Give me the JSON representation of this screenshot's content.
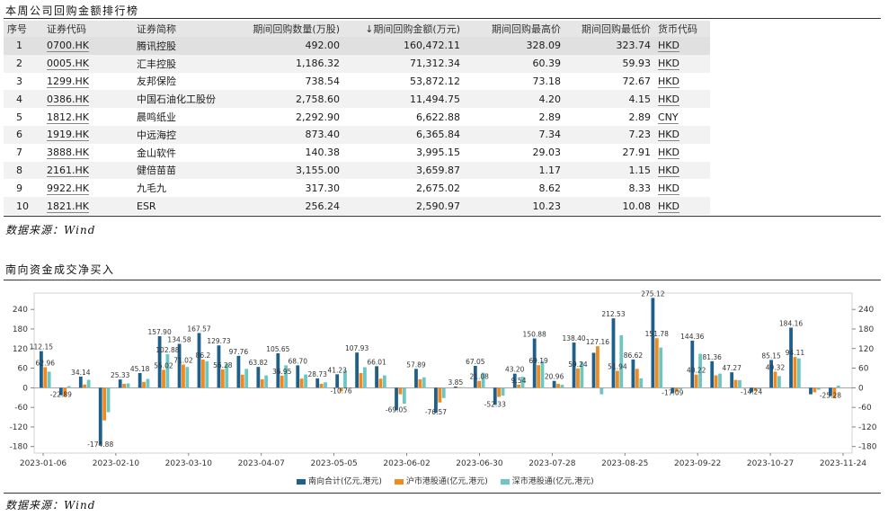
{
  "table_section": {
    "title": "本周公司回购金额排行榜",
    "source": "数据来源：Wind",
    "columns": [
      "序号",
      "证券代码",
      "证券简称",
      "期间回购数量(万股)",
      "↓期间回购金额(万元)",
      "期间回购最高价",
      "期间回购最低价",
      "货币代码"
    ],
    "rows": [
      [
        "1",
        "0700.HK",
        "腾讯控股",
        "492.00",
        "160,472.11",
        "328.09",
        "323.74",
        "HKD"
      ],
      [
        "2",
        "0005.HK",
        "汇丰控股",
        "1,186.32",
        "71,312.34",
        "60.39",
        "59.93",
        "HKD"
      ],
      [
        "3",
        "1299.HK",
        "友邦保险",
        "738.54",
        "53,872.12",
        "73.18",
        "72.67",
        "HKD"
      ],
      [
        "4",
        "0386.HK",
        "中国石油化工股份",
        "2,758.60",
        "11,494.75",
        "4.20",
        "4.15",
        "HKD"
      ],
      [
        "5",
        "1812.HK",
        "晨鸣纸业",
        "2,292.90",
        "6,622.88",
        "2.89",
        "2.89",
        "CNY"
      ],
      [
        "6",
        "1919.HK",
        "中远海控",
        "873.40",
        "6,365.84",
        "7.34",
        "7.23",
        "HKD"
      ],
      [
        "7",
        "3888.HK",
        "金山软件",
        "140.38",
        "3,995.15",
        "29.03",
        "27.91",
        "HKD"
      ],
      [
        "8",
        "2161.HK",
        "健倍苗苗",
        "3,155.00",
        "3,659.87",
        "1.17",
        "1.15",
        "HKD"
      ],
      [
        "9",
        "9922.HK",
        "九毛九",
        "317.30",
        "2,675.02",
        "8.62",
        "8.33",
        "HKD"
      ],
      [
        "10",
        "1821.HK",
        "ESR",
        "256.24",
        "2,590.97",
        "10.23",
        "10.08",
        "HKD"
      ]
    ]
  },
  "chart_section": {
    "title": "南向资金成交净买入",
    "source": "数据来源：Wind"
  },
  "chart_data": {
    "type": "bar",
    "y_ticks": [
      240,
      180,
      120,
      60,
      0,
      -60,
      -120,
      -180
    ],
    "ylim": [
      -200,
      290
    ],
    "x_tick_labels": [
      "2023-01-06",
      "2023-02-10",
      "2023-03-10",
      "2023-04-07",
      "2023-05-05",
      "2023-06-02",
      "2023-06-30",
      "2023-07-28",
      "2023-08-25",
      "2023-09-22",
      "2023-10-27",
      "2023-11-24"
    ],
    "colors": {
      "south": "#1f5f8b",
      "sh": "#f08a1c",
      "sz": "#6cc7c4",
      "label": "#333333"
    },
    "series": [
      {
        "name": "南向合计(亿元,港元)",
        "values": [
          112.15,
          -22.89,
          34.14,
          -174.88,
          25.33,
          45.18,
          157.9,
          134.58,
          167.57,
          129.73,
          97.76,
          63.82,
          105.65,
          68.7,
          28.73,
          41.23,
          107.93,
          66.01,
          -69.05,
          57.89,
          -76.57,
          3.85,
          67.05,
          -52.33,
          43.2,
          150.88,
          20.96,
          138.4,
          107.16,
          212.53,
          86.62,
          275.12,
          -17.09,
          144.36,
          81.36,
          47.27,
          -14.24,
          85.15,
          184.16,
          -20.0,
          -25.28
        ]
      },
      {
        "name": "沪市港股通(亿元,港元)",
        "values": [
          62.96,
          -28.0,
          10.0,
          -100.0,
          12.0,
          18.0,
          55.02,
          71.02,
          86.2,
          56.28,
          40.0,
          26.0,
          36.95,
          28.0,
          12.0,
          -10.76,
          45.0,
          28.0,
          -20.0,
          26.0,
          -45.0,
          2.0,
          21.08,
          -28.0,
          9.54,
          69.19,
          12.0,
          59.24,
          127.16,
          51.94,
          58.0,
          151.78,
          -12.0,
          40.22,
          38.0,
          24.0,
          -10.0,
          49.32,
          94.11,
          -14.0,
          -32.0
        ]
      },
      {
        "name": "深市港股通(亿元,港元)",
        "values": [
          49.19,
          5.0,
          24.14,
          -74.88,
          13.33,
          27.18,
          102.88,
          63.56,
          81.37,
          73.45,
          57.76,
          37.82,
          68.7,
          40.7,
          16.73,
          52.0,
          62.93,
          38.01,
          -49.05,
          31.89,
          -31.57,
          1.85,
          45.97,
          -24.33,
          33.66,
          81.69,
          8.96,
          79.16,
          -20.0,
          160.59,
          28.62,
          123.34,
          -5.09,
          104.14,
          43.36,
          23.27,
          -4.24,
          35.83,
          90.05,
          -6.0,
          6.72
        ]
      }
    ],
    "data_labels": [
      {
        "i": 0,
        "s": 0,
        "t": "112.15"
      },
      {
        "i": 0,
        "s": 1,
        "t": "62.96"
      },
      {
        "i": 1,
        "s": 0,
        "t": "-22.89"
      },
      {
        "i": 2,
        "s": 0,
        "t": "34.14"
      },
      {
        "i": 3,
        "s": 0,
        "t": "-174.88"
      },
      {
        "i": 4,
        "s": 0,
        "t": "25.33"
      },
      {
        "i": 5,
        "s": 0,
        "t": "45.18"
      },
      {
        "i": 6,
        "s": 0,
        "t": "157.90"
      },
      {
        "i": 6,
        "s": 2,
        "t": "102.88"
      },
      {
        "i": 6,
        "s": 1,
        "t": "55.02"
      },
      {
        "i": 7,
        "s": 0,
        "t": "134.58"
      },
      {
        "i": 7,
        "s": 1,
        "t": "71.02"
      },
      {
        "i": 8,
        "s": 0,
        "t": "167.57"
      },
      {
        "i": 8,
        "s": 1,
        "t": "86.2"
      },
      {
        "i": 9,
        "s": 0,
        "t": "129.73"
      },
      {
        "i": 9,
        "s": 1,
        "t": "56.28"
      },
      {
        "i": 10,
        "s": 0,
        "t": "97.76"
      },
      {
        "i": 11,
        "s": 0,
        "t": "63.82"
      },
      {
        "i": 12,
        "s": 0,
        "t": "105.65"
      },
      {
        "i": 12,
        "s": 1,
        "t": "36.95"
      },
      {
        "i": 13,
        "s": 0,
        "t": "68.70"
      },
      {
        "i": 14,
        "s": 0,
        "t": "28.73"
      },
      {
        "i": 15,
        "s": 0,
        "t": "41.23"
      },
      {
        "i": 15,
        "s": 1,
        "t": "-10.76"
      },
      {
        "i": 16,
        "s": 0,
        "t": "107.93"
      },
      {
        "i": 17,
        "s": 0,
        "t": "66.01"
      },
      {
        "i": 18,
        "s": 0,
        "t": "-69.05"
      },
      {
        "i": 19,
        "s": 0,
        "t": "57.89"
      },
      {
        "i": 20,
        "s": 0,
        "t": "-76.57"
      },
      {
        "i": 21,
        "s": 0,
        "t": "3.85"
      },
      {
        "i": 22,
        "s": 0,
        "t": "67.05"
      },
      {
        "i": 22,
        "s": 1,
        "t": "21.08"
      },
      {
        "i": 23,
        "s": 0,
        "t": "-52.33"
      },
      {
        "i": 24,
        "s": 0,
        "t": "43.20"
      },
      {
        "i": 24,
        "s": 1,
        "t": "9.54"
      },
      {
        "i": 25,
        "s": 0,
        "t": "150.88"
      },
      {
        "i": 25,
        "s": 1,
        "t": "69.19"
      },
      {
        "i": 26,
        "s": 0,
        "t": "20.96"
      },
      {
        "i": 27,
        "s": 0,
        "t": "138.40"
      },
      {
        "i": 27,
        "s": 1,
        "t": "59.24"
      },
      {
        "i": 28,
        "s": 1,
        "t": "127.16"
      },
      {
        "i": 29,
        "s": 0,
        "t": "212.53"
      },
      {
        "i": 29,
        "s": 1,
        "t": "51.94"
      },
      {
        "i": 30,
        "s": 0,
        "t": "86.62"
      },
      {
        "i": 31,
        "s": 0,
        "t": "275.12"
      },
      {
        "i": 31,
        "s": 1,
        "t": "151.78"
      },
      {
        "i": 32,
        "s": 0,
        "t": "-17.09"
      },
      {
        "i": 33,
        "s": 0,
        "t": "144.36"
      },
      {
        "i": 33,
        "s": 1,
        "t": "40.22"
      },
      {
        "i": 34,
        "s": 0,
        "t": "81.36"
      },
      {
        "i": 35,
        "s": 0,
        "t": "47.27"
      },
      {
        "i": 36,
        "s": 0,
        "t": "-14.24"
      },
      {
        "i": 37,
        "s": 0,
        "t": "85.15"
      },
      {
        "i": 37,
        "s": 1,
        "t": "49.32"
      },
      {
        "i": 38,
        "s": 0,
        "t": "184.16"
      },
      {
        "i": 38,
        "s": 1,
        "t": "94.11"
      },
      {
        "i": 40,
        "s": 0,
        "t": "-25.28"
      }
    ],
    "legend": [
      "南向合计(亿元,港元)",
      "沪市港股通(亿元,港元)",
      "深市港股通(亿元,港元)"
    ]
  }
}
